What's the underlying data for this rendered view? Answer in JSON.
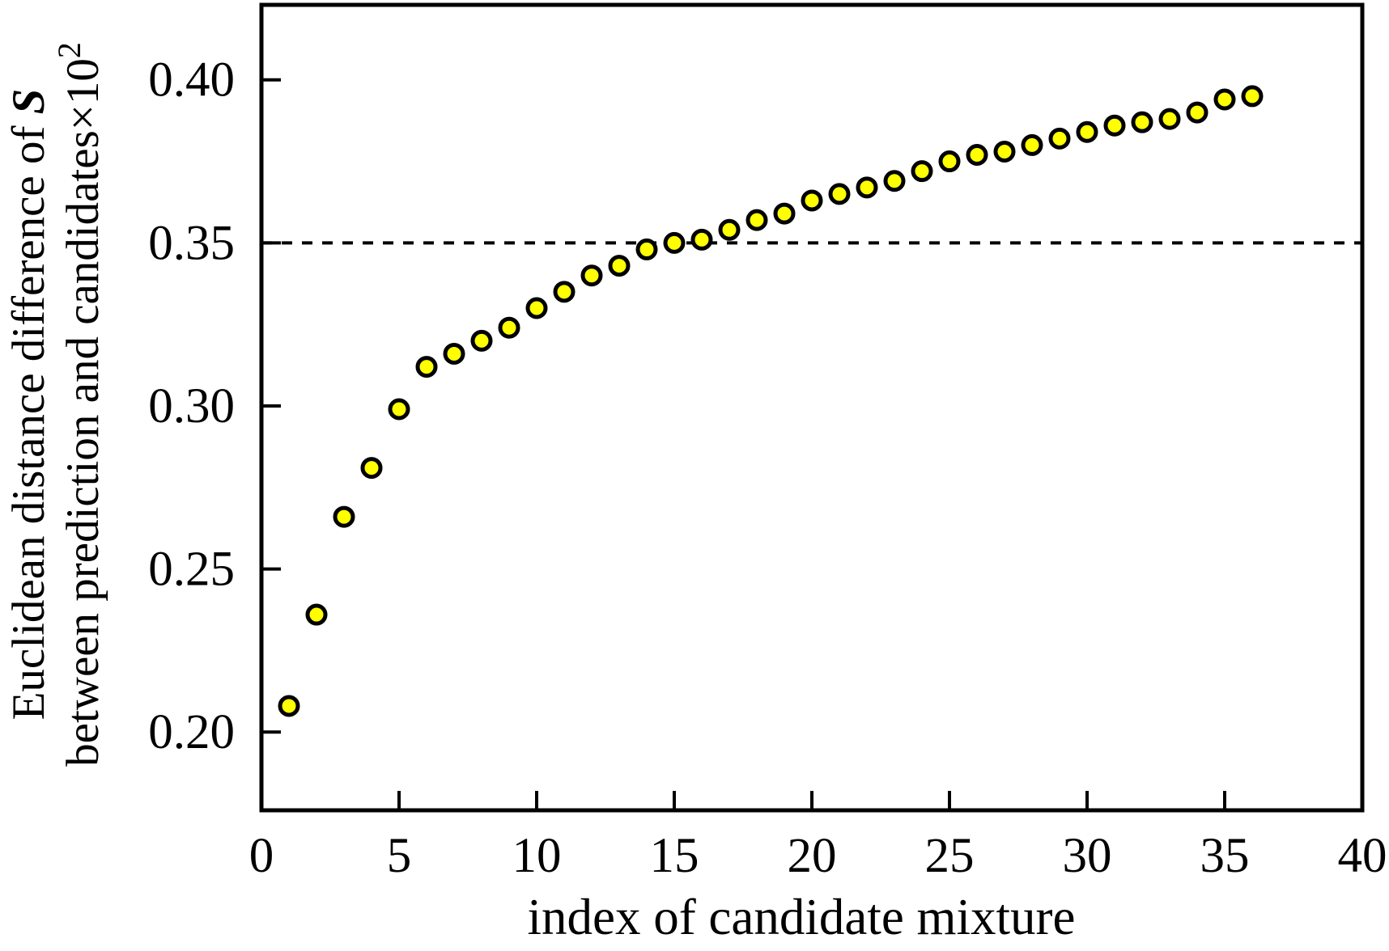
{
  "figure": {
    "background": "#ffffff",
    "frame_color": "#000000"
  },
  "chart_data": {
    "type": "scatter",
    "title": "",
    "xlabel": "index of candidate mixture",
    "ylabel_lines": [
      {
        "text": "Euclidean distance difference of ",
        "emphasis": "S"
      },
      {
        "text": "between prediction and candidates×10",
        "superscript": "2"
      }
    ],
    "xlim": [
      0,
      40
    ],
    "ylim": [
      0.176,
      0.423
    ],
    "xticks": [
      {
        "value": 0,
        "label": "0"
      },
      {
        "value": 5,
        "label": "5"
      },
      {
        "value": 10,
        "label": "10"
      },
      {
        "value": 15,
        "label": "15"
      },
      {
        "value": 20,
        "label": "20"
      },
      {
        "value": 25,
        "label": "25"
      },
      {
        "value": 30,
        "label": "30"
      },
      {
        "value": 35,
        "label": "35"
      },
      {
        "value": 40,
        "label": "40"
      }
    ],
    "yticks": [
      {
        "value": 0.2,
        "label": "0.20"
      },
      {
        "value": 0.25,
        "label": "0.25"
      },
      {
        "value": 0.3,
        "label": "0.30"
      },
      {
        "value": 0.35,
        "label": "0.35"
      },
      {
        "value": 0.4,
        "label": "0.40"
      }
    ],
    "grid": "off",
    "legend": "none",
    "threshold_line": {
      "y": 0.35,
      "style": "dotted",
      "color": "#000000"
    },
    "marker": {
      "shape": "circle",
      "fill": "#ffff00",
      "edge_color": "#000000"
    },
    "series": [
      {
        "name": "euclidean-distance-difference",
        "x": [
          1,
          2,
          3,
          4,
          5,
          6,
          7,
          8,
          9,
          10,
          11,
          12,
          13,
          14,
          15,
          16,
          17,
          18,
          19,
          20,
          21,
          22,
          23,
          24,
          25,
          26,
          27,
          28,
          29,
          30,
          31,
          32,
          33,
          34,
          35,
          36
        ],
        "y": [
          0.208,
          0.236,
          0.266,
          0.281,
          0.299,
          0.312,
          0.316,
          0.32,
          0.324,
          0.33,
          0.335,
          0.34,
          0.343,
          0.348,
          0.35,
          0.351,
          0.354,
          0.357,
          0.359,
          0.363,
          0.365,
          0.367,
          0.369,
          0.372,
          0.375,
          0.377,
          0.378,
          0.38,
          0.382,
          0.384,
          0.386,
          0.387,
          0.388,
          0.39,
          0.394,
          0.395
        ]
      }
    ]
  }
}
